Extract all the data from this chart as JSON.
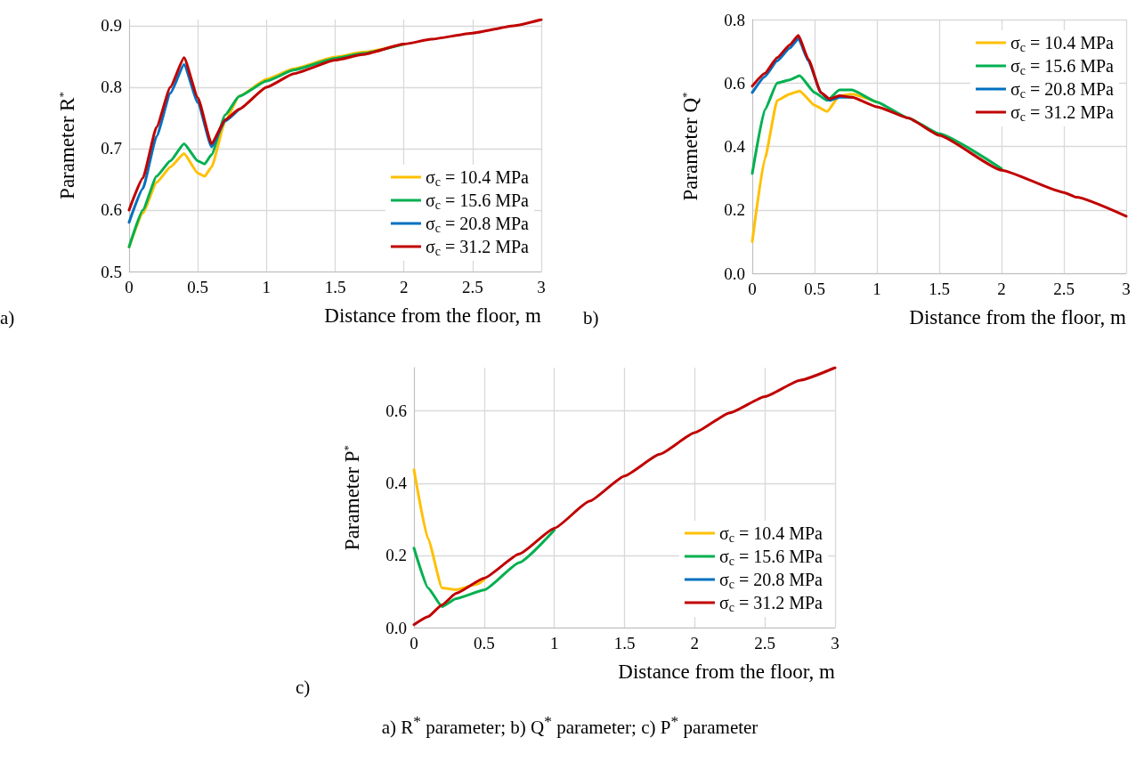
{
  "chart_data": [
    {
      "type": "line",
      "xlabel": "Distance from the floor, m",
      "ylabel": "Parameter R$^{*}$",
      "xlim": [
        0,
        3
      ],
      "xticks": [
        0,
        0.5,
        1,
        1.5,
        2,
        2.5,
        3
      ],
      "ylim": [
        0.5,
        0.91
      ],
      "yticks": [
        0.5,
        0.6,
        0.7,
        0.8,
        0.9
      ],
      "grid": true,
      "legend": "bottom right",
      "marker": "none",
      "line_style": "solid",
      "annotations": [
        "a)"
      ],
      "series": [
        {
          "name": "σ$_{c}$ = 10.4 MPa",
          "color": "#ffc000",
          "x": [
            0,
            0.1,
            0.2,
            0.3,
            0.4,
            0.5,
            0.55,
            0.6,
            0.7,
            0.8,
            1.0,
            1.2,
            1.5,
            1.7,
            2.0
          ],
          "values": [
            0.54,
            0.595,
            0.645,
            0.67,
            0.692,
            0.66,
            0.655,
            0.67,
            0.745,
            0.785,
            0.813,
            0.83,
            0.849,
            0.857,
            0.87
          ]
        },
        {
          "name": "σ$_{c}$ = 15.6 MPa",
          "color": "#00b050",
          "x": [
            0,
            0.1,
            0.2,
            0.3,
            0.4,
            0.5,
            0.55,
            0.6,
            0.7,
            0.8,
            1.0,
            1.2,
            1.5,
            1.7,
            2.0
          ],
          "values": [
            0.54,
            0.6,
            0.655,
            0.68,
            0.708,
            0.68,
            0.675,
            0.69,
            0.755,
            0.785,
            0.81,
            0.828,
            0.847,
            0.855,
            0.87
          ]
        },
        {
          "name": "σ$_{c}$ = 20.8 MPa",
          "color": "#0070c0",
          "x": [
            0,
            0.1,
            0.2,
            0.3,
            0.4,
            0.5,
            0.6,
            0.7,
            0.8
          ],
          "values": [
            0.58,
            0.635,
            0.72,
            0.79,
            0.837,
            0.775,
            0.703,
            0.745,
            0.764
          ]
        },
        {
          "name": "σ$_{c}$ = 31.2 MPa",
          "color": "#c00000",
          "x": [
            0,
            0.1,
            0.2,
            0.3,
            0.4,
            0.5,
            0.6,
            0.7,
            0.8,
            1.0,
            1.2,
            1.5,
            1.7,
            2.0,
            2.2,
            2.5,
            2.8,
            3.0
          ],
          "values": [
            0.6,
            0.652,
            0.735,
            0.8,
            0.848,
            0.783,
            0.708,
            0.747,
            0.764,
            0.8,
            0.822,
            0.844,
            0.853,
            0.87,
            0.878,
            0.888,
            0.9,
            0.91
          ]
        }
      ]
    },
    {
      "type": "line",
      "xlabel": "Distance from the floor, m",
      "ylabel": "Parameter Q$^{*}$",
      "xlim": [
        0,
        3
      ],
      "xticks": [
        0,
        0.5,
        1,
        1.5,
        2,
        2.5,
        3
      ],
      "ylim": [
        0,
        0.8
      ],
      "yticks": [
        {
          "value": 0,
          "label": "0.0"
        },
        {
          "value": 0.2,
          "label": "0.2"
        },
        {
          "value": 0.4,
          "label": "0.4"
        },
        {
          "value": 0.6,
          "label": "0.6"
        },
        {
          "value": 0.8,
          "label": "0.8"
        }
      ],
      "grid": true,
      "legend": "top right",
      "marker": "none",
      "line_style": "solid",
      "annotations": [
        "b)"
      ],
      "series": [
        {
          "name": "σ$_{c}$ = 10.4 MPa",
          "color": "#ffc000",
          "x": [
            0,
            0.1,
            0.2,
            0.3,
            0.38,
            0.5,
            0.6,
            0.7,
            0.8,
            1.0
          ],
          "values": [
            0.1,
            0.36,
            0.545,
            0.565,
            0.575,
            0.53,
            0.51,
            0.56,
            0.565,
            0.54
          ]
        },
        {
          "name": "σ$_{c}$ = 15.6 MPa",
          "color": "#00b050",
          "x": [
            0,
            0.1,
            0.2,
            0.3,
            0.38,
            0.5,
            0.6,
            0.7,
            0.8,
            1.0,
            1.25,
            1.5,
            2.0
          ],
          "values": [
            0.315,
            0.515,
            0.6,
            0.61,
            0.623,
            0.57,
            0.545,
            0.578,
            0.578,
            0.54,
            0.49,
            0.44,
            0.33
          ]
        },
        {
          "name": "σ$_{c}$ = 20.8 MPa",
          "color": "#0070c0",
          "x": [
            0,
            0.1,
            0.2,
            0.3,
            0.37,
            0.45,
            0.55,
            0.62,
            0.7,
            0.8
          ],
          "values": [
            0.57,
            0.62,
            0.67,
            0.71,
            0.74,
            0.67,
            0.57,
            0.545,
            0.555,
            0.555
          ]
        },
        {
          "name": "σ$_{c}$ = 31.2 MPa",
          "color": "#c00000",
          "x": [
            0,
            0.1,
            0.2,
            0.3,
            0.37,
            0.45,
            0.55,
            0.62,
            0.7,
            0.8,
            1.0,
            1.25,
            1.5,
            2.0,
            2.5,
            2.6,
            3.0
          ],
          "values": [
            0.59,
            0.63,
            0.68,
            0.72,
            0.75,
            0.675,
            0.57,
            0.55,
            0.56,
            0.555,
            0.525,
            0.49,
            0.435,
            0.325,
            0.255,
            0.24,
            0.18
          ]
        }
      ]
    },
    {
      "type": "line",
      "xlabel": "Distance from the floor, m",
      "ylabel": "Parameter P$^{*}$",
      "xlim": [
        0,
        3
      ],
      "xticks": [
        0,
        0.5,
        1,
        1.5,
        2,
        2.5,
        3
      ],
      "ylim": [
        0,
        0.72
      ],
      "yticks": [
        {
          "value": 0,
          "label": "0.0"
        },
        {
          "value": 0.2,
          "label": "0.2"
        },
        {
          "value": 0.4,
          "label": "0.4"
        },
        {
          "value": 0.6,
          "label": "0.6"
        }
      ],
      "grid": true,
      "legend": "bottom right",
      "marker": "none",
      "line_style": "solid",
      "annotations": [
        "c)",
        "a) R$^{*}$ parameter; b) Q$^{*}$ parameter; c) P$^{*}$ parameter"
      ],
      "series": [
        {
          "name": "σ$_{c}$ = 10.4 MPa",
          "color": "#ffc000",
          "x": [
            0,
            0.1,
            0.2,
            0.3,
            0.45,
            0.5
          ],
          "values": [
            0.437,
            0.246,
            0.11,
            0.105,
            0.12,
            0.133
          ]
        },
        {
          "name": "σ$_{c}$ = 15.6 MPa",
          "color": "#00b050",
          "x": [
            0,
            0.1,
            0.2,
            0.3,
            0.5,
            0.75,
            1.0
          ],
          "values": [
            0.22,
            0.11,
            0.058,
            0.08,
            0.104,
            0.18,
            0.27
          ]
        },
        {
          "name": "σ$_{c}$ = 20.8 MPa",
          "color": "#0070c0"
        },
        {
          "name": "σ$_{c}$ = 31.2 MPa",
          "color": "#c00000",
          "x": [
            0,
            0.1,
            0.2,
            0.3,
            0.5,
            0.75,
            1.0,
            1.25,
            1.5,
            1.75,
            2.0,
            2.25,
            2.5,
            2.75,
            3.0
          ],
          "values": [
            0.008,
            0.03,
            0.063,
            0.095,
            0.137,
            0.204,
            0.275,
            0.35,
            0.42,
            0.48,
            0.54,
            0.595,
            0.64,
            0.685,
            0.72
          ]
        }
      ]
    }
  ]
}
